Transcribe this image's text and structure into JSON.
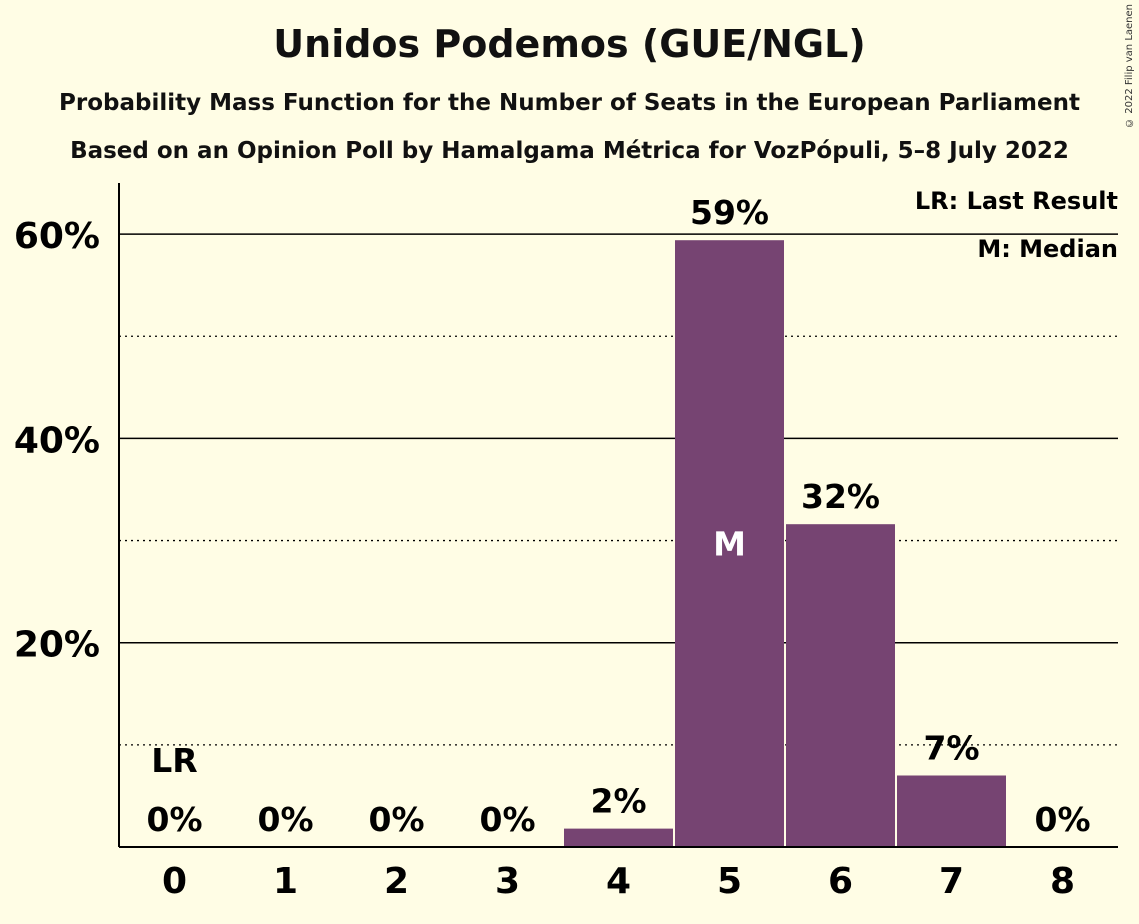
{
  "title": "Unidos Podemos (GUE/NGL)",
  "subtitle1": "Probability Mass Function for the Number of Seats in the European Parliament",
  "subtitle2": "Based on an Opinion Poll by Hamalgama Métrica for VozPópuli, 5–8 July 2022",
  "copyright": "© 2022 Filip van Laenen",
  "legend": {
    "last_result": "LR: Last Result",
    "median": "M: Median"
  },
  "colors": {
    "bar": "#764472",
    "background": "#FFFDE5"
  },
  "chart_data": {
    "type": "bar",
    "categories": [
      "0",
      "1",
      "2",
      "3",
      "4",
      "5",
      "6",
      "7",
      "8"
    ],
    "values": [
      0,
      0,
      0,
      0,
      1.8,
      59.4,
      31.6,
      7.0,
      0
    ],
    "labels": [
      "0%",
      "0%",
      "0%",
      "0%",
      "2%",
      "59%",
      "32%",
      "7%",
      "0%"
    ],
    "ylim": [
      0,
      65
    ],
    "yticks": [
      20,
      40,
      60
    ],
    "ytick_labels": [
      "20%",
      "40%",
      "60%"
    ],
    "minor_gridlines": [
      10,
      30,
      50
    ],
    "last_result_index": 0,
    "last_result_marker": "LR",
    "median_index": 5,
    "median_marker": "M",
    "legend_position": "top-right"
  }
}
